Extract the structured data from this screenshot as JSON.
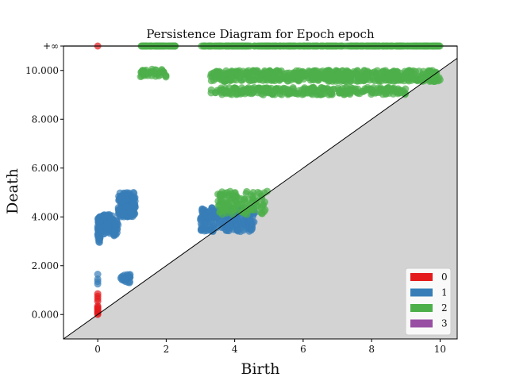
{
  "chart_data": {
    "type": "scatter",
    "title": "Persistence Diagram for Epoch epoch",
    "xlabel": "Birth",
    "ylabel": "Death",
    "xlim": [
      -1.0,
      10.5
    ],
    "ylim": [
      -1.0,
      11.0
    ],
    "infinity_value": 11.0,
    "infinity_label": "+∞",
    "x_ticks": [
      0,
      2,
      4,
      6,
      8,
      10
    ],
    "x_tick_labels": [
      "0",
      "2",
      "4",
      "6",
      "8",
      "10"
    ],
    "y_ticks": [
      0,
      2,
      4,
      6,
      8,
      10
    ],
    "y_tick_labels": [
      "0.000",
      "2.000",
      "4.000",
      "6.000",
      "8.000",
      "10.000"
    ],
    "legend": {
      "position": "lower-right",
      "entries": [
        "0",
        "1",
        "2",
        "3"
      ]
    },
    "colors": {
      "0": "#e41a1c",
      "1": "#377eb8",
      "2": "#4daf4a",
      "3": "#984ea3",
      "diagonal_fill": "#d3d3d3",
      "infinity_line": "#8a8a8a"
    },
    "grid": false,
    "series": [
      {
        "name": "0",
        "color": "#e41a1c",
        "points": [
          [
            0,
            0.0
          ],
          [
            0,
            0.05
          ],
          [
            0,
            0.1
          ],
          [
            0,
            0.15
          ],
          [
            0,
            0.2
          ],
          [
            0,
            0.25
          ],
          [
            0,
            0.3
          ],
          [
            0,
            0.35
          ],
          [
            0,
            0.55
          ],
          [
            0,
            0.65
          ],
          [
            0,
            0.75
          ],
          [
            0,
            0.85
          ],
          [
            0,
            11.0
          ]
        ]
      },
      {
        "name": "1",
        "color": "#377eb8",
        "clusters": [
          {
            "x": [
              0.0,
              0.08
            ],
            "y": [
              2.95,
              4.0
            ],
            "n": 60
          },
          {
            "x": [
              0.05,
              0.45
            ],
            "y": [
              3.3,
              4.1
            ],
            "n": 70
          },
          {
            "x": [
              0.45,
              0.6
            ],
            "y": [
              3.2,
              3.9
            ],
            "n": 25
          },
          {
            "x": [
              0.6,
              1.1
            ],
            "y": [
              4.0,
              5.0
            ],
            "n": 140
          },
          {
            "x": [
              0.65,
              0.95
            ],
            "y": [
              1.3,
              1.65
            ],
            "n": 25
          },
          {
            "x": [
              3.0,
              4.6
            ],
            "y": [
              3.4,
              4.4
            ],
            "n": 220
          }
        ],
        "points": [
          [
            0,
            1.25
          ],
          [
            0,
            1.35
          ],
          [
            0,
            1.45
          ],
          [
            0,
            1.65
          ]
        ]
      },
      {
        "name": "2",
        "color": "#4daf4a",
        "clusters": [
          {
            "x": [
              1.25,
              2.3
            ],
            "y": [
              11.0,
              11.0
            ],
            "n": 70
          },
          {
            "x": [
              3.0,
              10.0
            ],
            "y": [
              11.0,
              11.0
            ],
            "n": 340
          },
          {
            "x": [
              1.25,
              2.0
            ],
            "y": [
              9.7,
              10.05
            ],
            "n": 45
          },
          {
            "x": [
              3.3,
              10.0
            ],
            "y": [
              9.55,
              10.0
            ],
            "n": 560
          },
          {
            "x": [
              3.3,
              9.0
            ],
            "y": [
              9.0,
              9.3
            ],
            "n": 280
          },
          {
            "x": [
              3.5,
              4.9
            ],
            "y": [
              4.1,
              5.05
            ],
            "n": 120
          }
        ],
        "points": [
          [
            4.95,
            5.05
          ]
        ]
      },
      {
        "name": "3",
        "color": "#984ea3",
        "points": []
      }
    ]
  }
}
